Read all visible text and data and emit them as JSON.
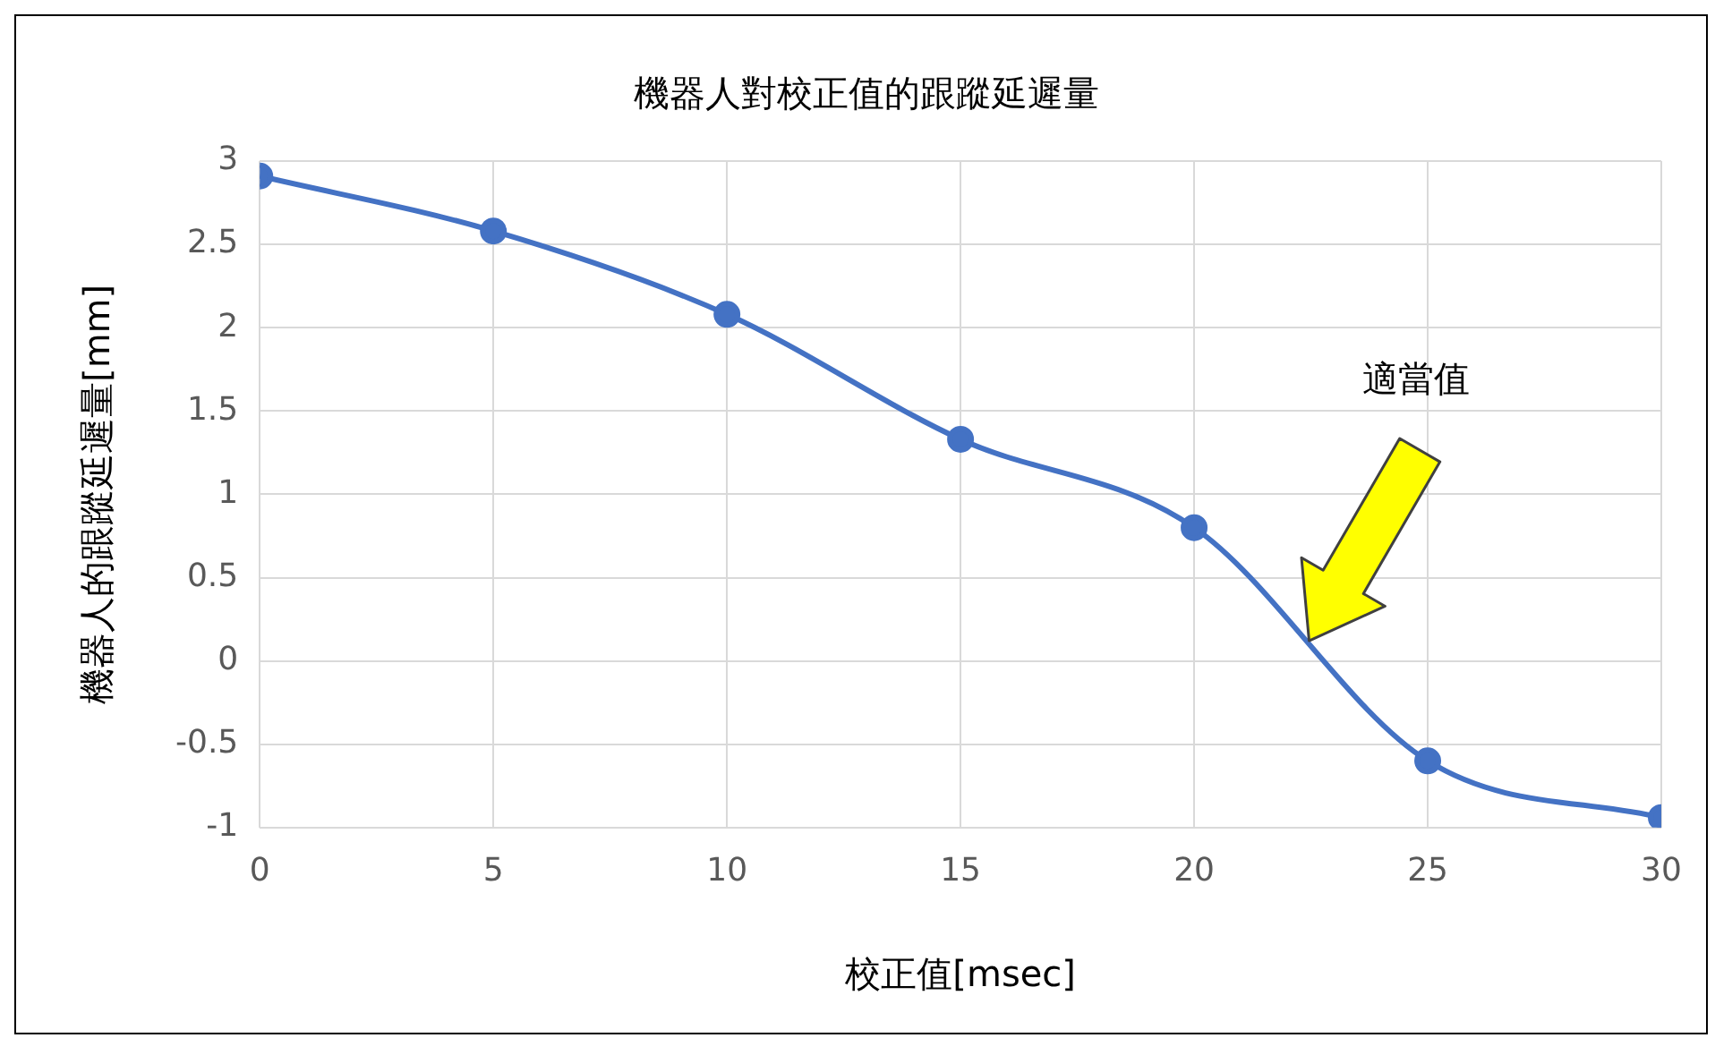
{
  "chart_data": {
    "type": "line",
    "title": "機器人對校正值的跟蹤延遲量",
    "xlabel": "校正值[msec]",
    "ylabel": "機器人的跟蹤延遲量[mm]",
    "x": [
      0,
      5,
      10,
      15,
      20,
      25,
      30
    ],
    "series": [
      {
        "color": "#4472c4",
        "values": [
          2.91,
          2.58,
          2.08,
          1.33,
          0.8,
          -0.6,
          -0.94
        ]
      }
    ],
    "xlim": [
      0,
      30
    ],
    "xticks": [
      0,
      5,
      10,
      15,
      20,
      25,
      30
    ],
    "ylim": [
      -1,
      3
    ],
    "yticks": [
      -1,
      -0.5,
      0,
      0.5,
      1,
      1.5,
      2,
      2.5,
      3
    ],
    "grid": true,
    "legend": false,
    "marker": "circle",
    "line_style": "solid",
    "annotations": [
      "適當值"
    ]
  }
}
